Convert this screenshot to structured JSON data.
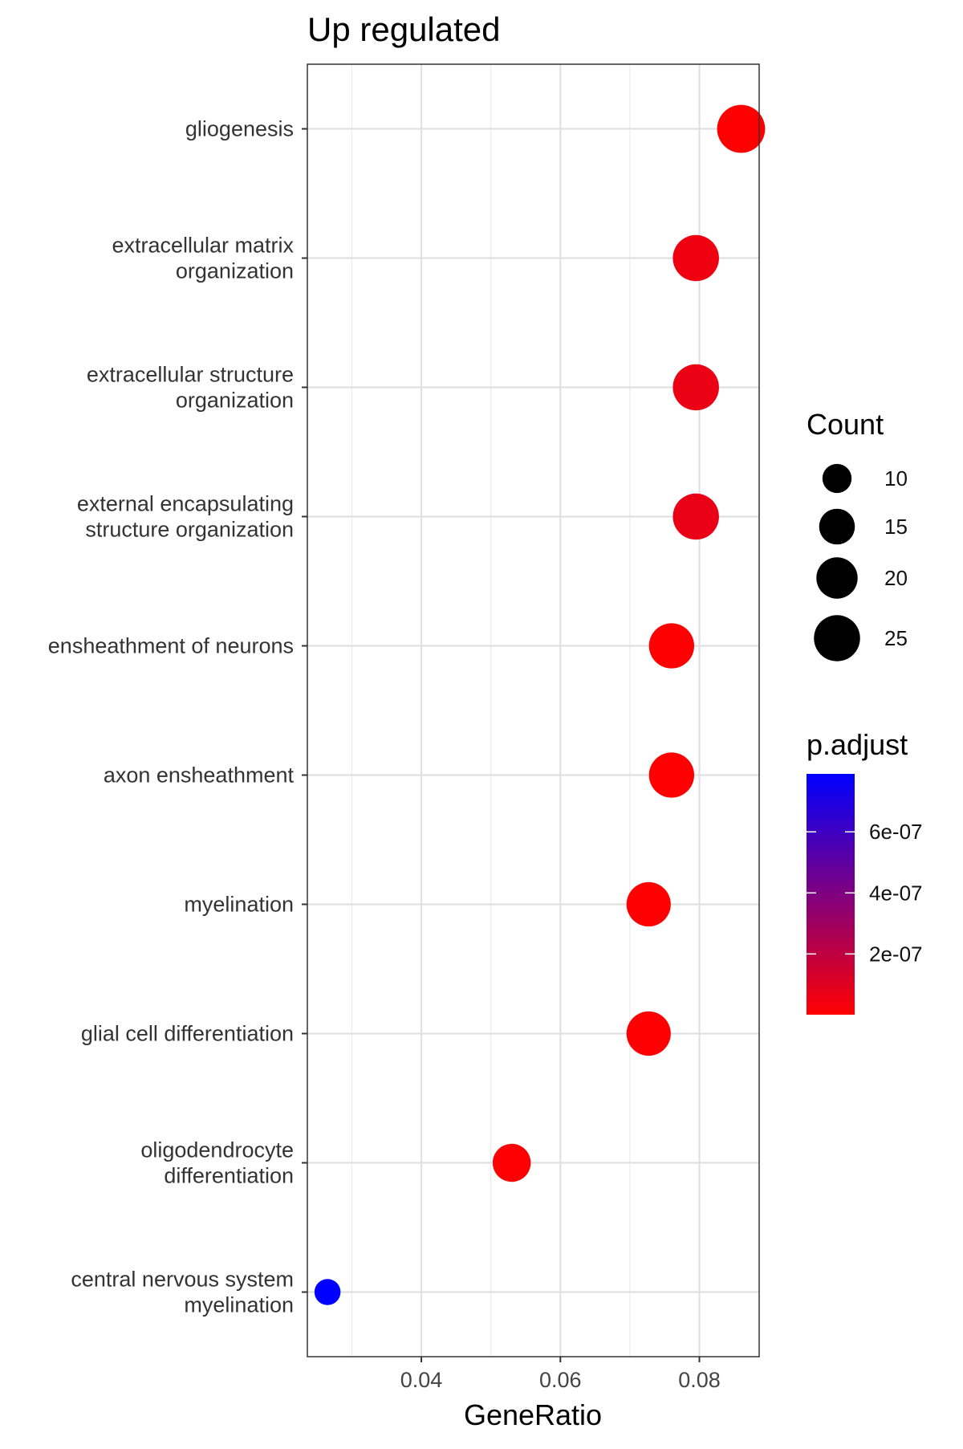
{
  "chart_data": {
    "type": "scatter",
    "title": "Up regulated",
    "xlabel": "GeneRatio",
    "ylabel": "",
    "xlim": [
      0.0236,
      0.0886
    ],
    "x_ticks": [
      0.04,
      0.06,
      0.08
    ],
    "x_tick_labels": [
      "0.04",
      "0.06",
      "0.08"
    ],
    "grid": true,
    "categories": [
      {
        "lines": [
          "gliogenesis"
        ],
        "gene_ratio": 0.086,
        "count": 27,
        "p_adjust": 1e-09
      },
      {
        "lines": [
          "extracellular matrix",
          "organization"
        ],
        "gene_ratio": 0.0795,
        "count": 25,
        "p_adjust": 5e-08
      },
      {
        "lines": [
          "extracellular structure",
          "organization"
        ],
        "gene_ratio": 0.0795,
        "count": 25,
        "p_adjust": 6e-08
      },
      {
        "lines": [
          "external encapsulating",
          "structure organization"
        ],
        "gene_ratio": 0.0795,
        "count": 25,
        "p_adjust": 7e-08
      },
      {
        "lines": [
          "ensheathment of neurons"
        ],
        "gene_ratio": 0.076,
        "count": 24,
        "p_adjust": 1e-09
      },
      {
        "lines": [
          "axon ensheathment"
        ],
        "gene_ratio": 0.076,
        "count": 24,
        "p_adjust": 1e-09
      },
      {
        "lines": [
          "myelination"
        ],
        "gene_ratio": 0.0727,
        "count": 23,
        "p_adjust": 5e-09
      },
      {
        "lines": [
          "glial cell differentiation"
        ],
        "gene_ratio": 0.0727,
        "count": 23,
        "p_adjust": 5e-09
      },
      {
        "lines": [
          "oligodendrocyte",
          "differentiation"
        ],
        "gene_ratio": 0.053,
        "count": 17,
        "p_adjust": 1e-08
      },
      {
        "lines": [
          "central nervous system",
          "myelination"
        ],
        "gene_ratio": 0.0265,
        "count": 8,
        "p_adjust": 7.9e-07
      }
    ],
    "size_legend": {
      "title": "Count",
      "entries": [
        {
          "label": "10",
          "value": 10
        },
        {
          "label": "15",
          "value": 15
        },
        {
          "label": "20",
          "value": 20
        },
        {
          "label": "25",
          "value": 25
        }
      ]
    },
    "color_legend": {
      "title": "p.adjust",
      "low_color": "#ff0000",
      "high_color": "#0000ff",
      "range": [
        1e-09,
        7.9e-07
      ],
      "ticks": [
        {
          "label": "6e-07",
          "value": 6e-07
        },
        {
          "label": "4e-07",
          "value": 4e-07
        },
        {
          "label": "2e-07",
          "value": 2e-07
        }
      ]
    }
  }
}
